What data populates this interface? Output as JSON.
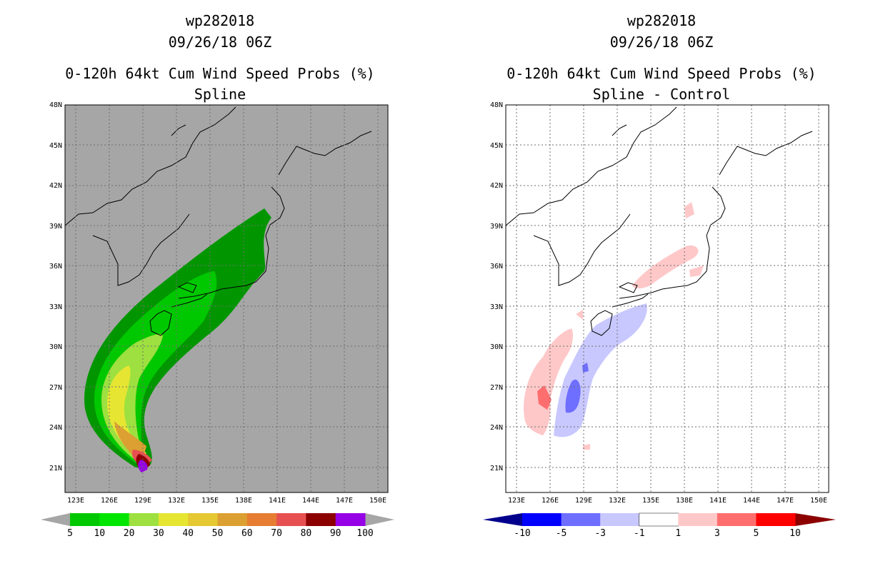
{
  "chart_data": [
    {
      "type": "heatmap",
      "storm_id": "wp282018",
      "datetime": "09/26/18 06Z",
      "title": "0-120h 64kt Cum Wind Speed Probs (%)",
      "subtitle": "Spline",
      "y_ticks": [
        "48N",
        "45N",
        "42N",
        "39N",
        "36N",
        "33N",
        "30N",
        "27N",
        "24N",
        "21N"
      ],
      "x_ticks": [
        "123E",
        "126E",
        "129E",
        "132E",
        "135E",
        "138E",
        "141E",
        "144E",
        "147E",
        "150E"
      ],
      "ylim": [
        19,
        48
      ],
      "xlim": [
        122,
        151
      ],
      "colorbar": {
        "labels": [
          "5",
          "10",
          "20",
          "30",
          "40",
          "50",
          "60",
          "70",
          "80",
          "90",
          "100"
        ],
        "colors": [
          "#019600",
          "#00c800",
          "#00e600",
          "#9de040",
          "#e6e632",
          "#e6c832",
          "#dca032",
          "#e67d32",
          "#e65050",
          "#8c0000",
          "#9600e6"
        ]
      }
    },
    {
      "type": "heatmap",
      "storm_id": "wp282018",
      "datetime": "09/26/18 06Z",
      "title": "0-120h 64kt Cum Wind Speed Probs (%)",
      "subtitle": "Spline - Control",
      "y_ticks": [
        "48N",
        "45N",
        "42N",
        "39N",
        "36N",
        "33N",
        "30N",
        "27N",
        "24N",
        "21N"
      ],
      "x_ticks": [
        "123E",
        "126E",
        "129E",
        "132E",
        "135E",
        "138E",
        "141E",
        "144E",
        "147E",
        "150E"
      ],
      "ylim": [
        19,
        48
      ],
      "xlim": [
        122,
        151
      ],
      "colorbar": {
        "labels": [
          "-10",
          "-5",
          "-3",
          "-1",
          "1",
          "3",
          "5",
          "10"
        ],
        "colors": [
          "#00008c",
          "#0000ff",
          "#6e6eff",
          "#c8c8ff",
          "#ffffff",
          "#ffc8c8",
          "#ff6e6e",
          "#ff0000",
          "#8c0000"
        ]
      }
    }
  ]
}
